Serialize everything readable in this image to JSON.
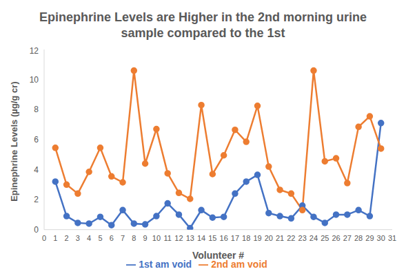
{
  "chart_data": {
    "type": "line",
    "title": "Epinephrine Levels are Higher in the 2nd morning urine sample compared to the 1st",
    "x_label": "Volunteer #",
    "y_label": "Epinephrine Levels (µg/g cr)",
    "x": [
      1,
      2,
      3,
      4,
      5,
      6,
      7,
      8,
      9,
      10,
      11,
      12,
      13,
      14,
      15,
      16,
      17,
      18,
      19,
      20,
      21,
      22,
      23,
      24,
      25,
      26,
      27,
      28,
      29,
      30
    ],
    "series": [
      {
        "name": "1st am void",
        "color": "#4472c4",
        "marker": "circle",
        "values": [
          3.2,
          0.9,
          0.45,
          0.4,
          0.85,
          0.3,
          1.3,
          0.4,
          0.35,
          0.9,
          1.75,
          1.0,
          0.1,
          1.3,
          0.8,
          0.85,
          2.4,
          3.2,
          3.65,
          1.1,
          0.9,
          0.75,
          1.6,
          0.85,
          0.45,
          1.0,
          1.0,
          1.3,
          0.9,
          7.1
        ]
      },
      {
        "name": "2nd am void",
        "color": "#ed7d31",
        "marker": "circle",
        "values": [
          5.45,
          3.0,
          2.4,
          3.85,
          5.45,
          3.55,
          3.15,
          10.6,
          4.4,
          6.7,
          3.75,
          2.45,
          2.05,
          8.3,
          3.7,
          4.95,
          6.65,
          5.85,
          8.25,
          4.2,
          2.65,
          2.4,
          1.3,
          10.6,
          4.55,
          4.75,
          3.1,
          6.85,
          7.55,
          5.4
        ]
      }
    ],
    "xlim": [
      0,
      31
    ],
    "xticks": [
      0,
      1,
      2,
      3,
      4,
      5,
      6,
      7,
      8,
      9,
      10,
      11,
      12,
      13,
      14,
      15,
      16,
      17,
      18,
      19,
      20,
      21,
      22,
      23,
      24,
      25,
      26,
      27,
      28,
      29,
      30,
      31
    ],
    "ylim": [
      0,
      12
    ],
    "yticks": [
      0,
      2,
      4,
      6,
      8,
      10,
      12
    ],
    "grid": false,
    "legend": "bottom"
  }
}
